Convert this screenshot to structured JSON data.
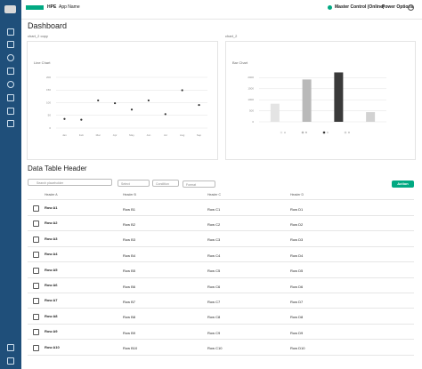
{
  "header": {
    "brand": "HPE",
    "app_name": "App Name",
    "status": "Master Control (Online)",
    "power": "Power Options"
  },
  "page_title": "Dashboard",
  "charts": [
    {
      "label": "chart_2 copy",
      "type": "scatter",
      "title": "Line Chart",
      "categories": [
        "Jan",
        "Feb",
        "Mar",
        "Apr",
        "May",
        "Jun",
        "Jul",
        "Aug",
        "Sep"
      ],
      "values": [
        36,
        33,
        109,
        98,
        73,
        109,
        55,
        149,
        91
      ],
      "color": "#333333",
      "ylim": [
        0,
        200
      ],
      "yticks": [
        0,
        50,
        100,
        150,
        200
      ],
      "grid": true
    },
    {
      "label": "chart_2",
      "type": "bar",
      "title": "Bar Chart",
      "categories": [
        "A",
        "B",
        "C",
        "D"
      ],
      "values": [
        820,
        1920,
        2240,
        440
      ],
      "colors": [
        "#e4e4e4",
        "#b9b9b9",
        "#3a3a3a",
        "#d2d2d2"
      ],
      "ylim": [
        0,
        2500
      ],
      "yticks": [
        0,
        500,
        1000,
        1500,
        2000
      ],
      "grid": true
    }
  ],
  "table": {
    "title": "Data Table Header",
    "search_placeholder": "Search placeholder",
    "filters": [
      "Select",
      "Condition",
      "Format"
    ],
    "action": "Action",
    "headers": [
      "Header A",
      "Header B",
      "Header C",
      "Header D"
    ],
    "rows": [
      [
        "Row A1",
        "Row B1",
        "Row C1",
        "Row D1"
      ],
      [
        "Row A2",
        "Row B2",
        "Row C2",
        "Row D2"
      ],
      [
        "Row A3",
        "Row B3",
        "Row C3",
        "Row D3"
      ],
      [
        "Row A4",
        "Row B4",
        "Row C4",
        "Row D4"
      ],
      [
        "Row A5",
        "Row B5",
        "Row C5",
        "Row D5"
      ],
      [
        "Row A6",
        "Row B6",
        "Row C6",
        "Row D6"
      ],
      [
        "Row A7",
        "Row B7",
        "Row C7",
        "Row D7"
      ],
      [
        "Row A8",
        "Row B8",
        "Row C8",
        "Row D8"
      ],
      [
        "Row A9",
        "Row B9",
        "Row C9",
        "Row D9"
      ],
      [
        "Row A10",
        "Row B10",
        "Row C10",
        "Row D10"
      ]
    ]
  }
}
